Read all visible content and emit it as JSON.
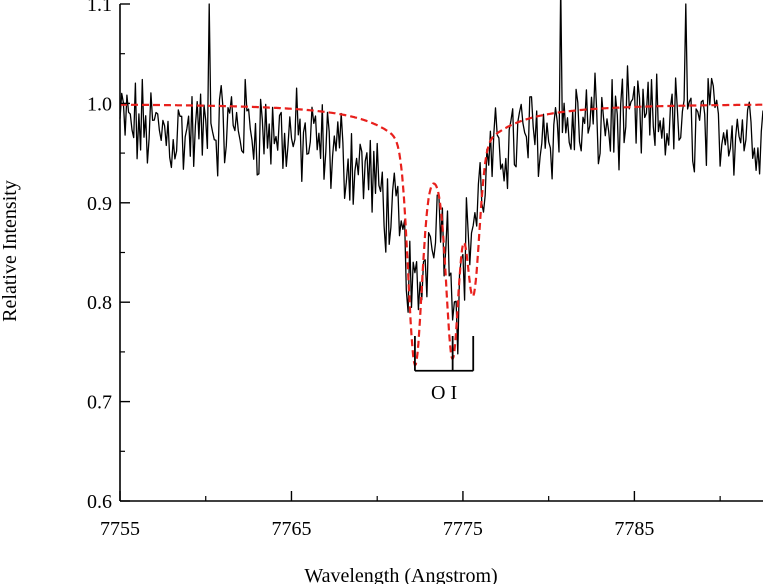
{
  "chart_data": {
    "type": "line",
    "title": "",
    "xlabel": "Wavelength (Angstrom)",
    "ylabel": "Relative Intensity",
    "xlim": [
      7755,
      7792.5
    ],
    "ylim": [
      0.6,
      1.1
    ],
    "x_ticks": [
      "7755",
      "7765",
      "7775",
      "7785"
    ],
    "y_ticks": [
      "0.6",
      "0.7",
      "0.8",
      "0.9",
      "1.0",
      "1.1"
    ],
    "grid": false,
    "series": [
      {
        "style": "observed",
        "color": "#000000",
        "x_step": 0.1,
        "x": [
          7755,
          7792.5
        ],
        "y_profile_points": [
          [
            7755,
            0.98
          ],
          [
            7758,
            0.97
          ],
          [
            7760,
            0.97
          ],
          [
            7762,
            0.98
          ],
          [
            7764,
            0.97
          ],
          [
            7766,
            0.96
          ],
          [
            7768,
            0.95
          ],
          [
            7769.5,
            0.93
          ],
          [
            7770.5,
            0.9
          ],
          [
            7771.5,
            0.86
          ],
          [
            7772.2,
            0.8
          ],
          [
            7772.8,
            0.84
          ],
          [
            7773.4,
            0.9
          ],
          [
            7773.9,
            0.88
          ],
          [
            7774.3,
            0.84
          ],
          [
            7774.7,
            0.8
          ],
          [
            7775.2,
            0.86
          ],
          [
            7775.6,
            0.88
          ],
          [
            7776.4,
            0.93
          ],
          [
            7777.5,
            0.96
          ],
          [
            7779,
            0.97
          ],
          [
            7781,
            0.975
          ],
          [
            7783,
            0.98
          ],
          [
            7785,
            0.98
          ],
          [
            7788,
            0.98
          ],
          [
            7792.5,
            0.975
          ]
        ],
        "noise_amplitude": 0.04,
        "spikes": [
          [
            7760.2,
            1.1
          ],
          [
            7780.7,
            1.12
          ],
          [
            7788.0,
            1.1
          ]
        ]
      },
      {
        "style": "model fit",
        "color": "#e8201c",
        "dashed": true,
        "x": [
          7755,
          7792.5
        ],
        "continuum": 1.0,
        "lines": [
          {
            "center": 7772.2,
            "depth": 0.21,
            "width": 0.55
          },
          {
            "center": 7774.4,
            "depth": 0.18,
            "width": 0.5
          },
          {
            "center": 7775.6,
            "depth": 0.14,
            "width": 0.5
          }
        ],
        "wing_depth": 0.08,
        "wing_width": 2.4
      }
    ],
    "annotations": [
      {
        "text": "O I",
        "marker_positions": [
          7772.2,
          7774.4,
          7775.6
        ]
      }
    ]
  }
}
